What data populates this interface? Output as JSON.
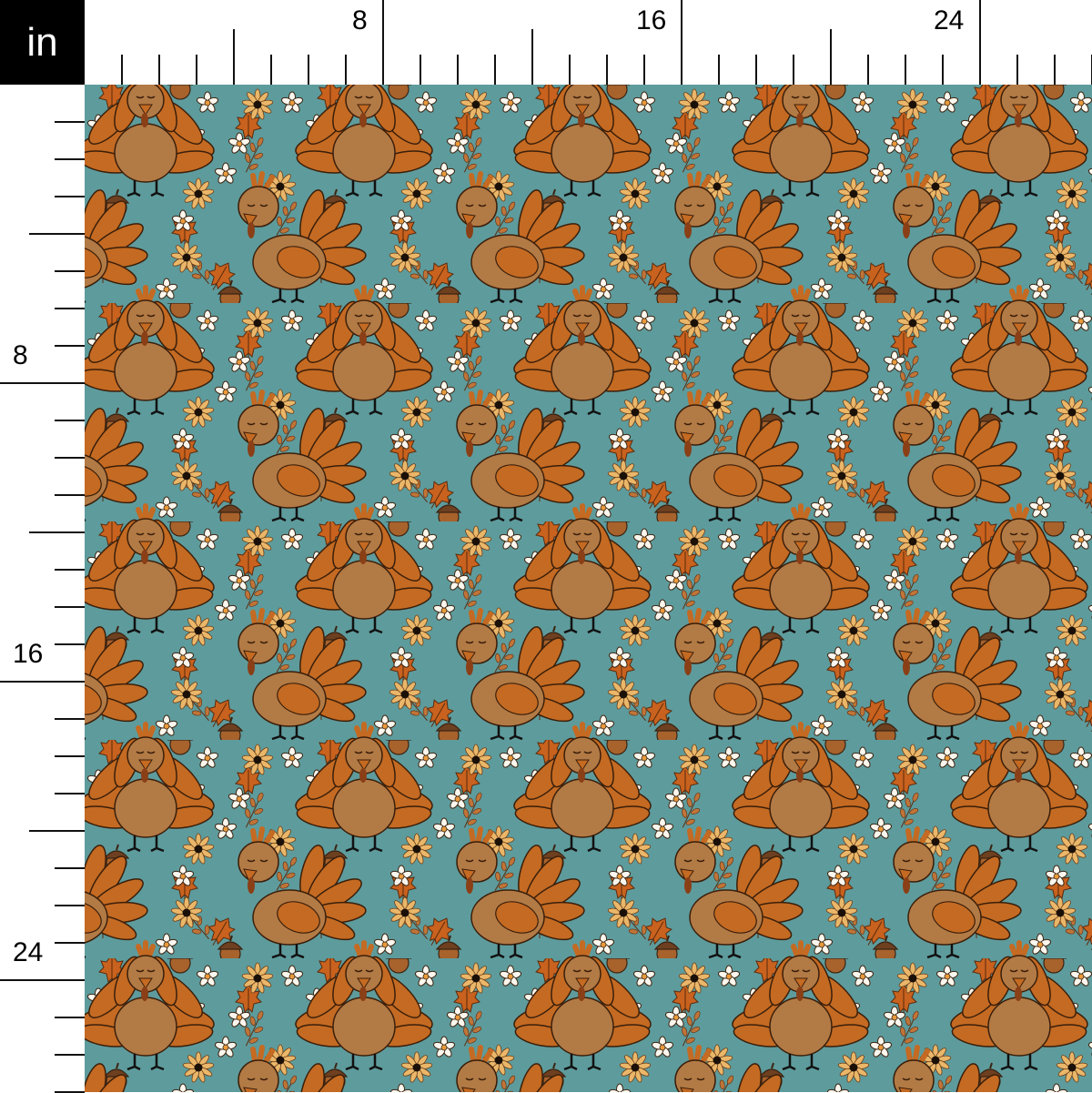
{
  "ruler": {
    "unit": "in",
    "top_labels": [
      "8",
      "16",
      "24"
    ],
    "left_labels": [
      "8",
      "16",
      "24"
    ]
  },
  "fabric": {
    "motif": [
      "turkey",
      "acorn",
      "oak-leaf",
      "daisy",
      "black-eyed-susan",
      "leafy-sprig"
    ],
    "colors": {
      "background": "#5e9b9c",
      "feather": "#c46a22",
      "body": "#b27a45",
      "outline": "#4a2a12",
      "daisy": "#fbf7ee",
      "susan": "#eab76a"
    }
  }
}
